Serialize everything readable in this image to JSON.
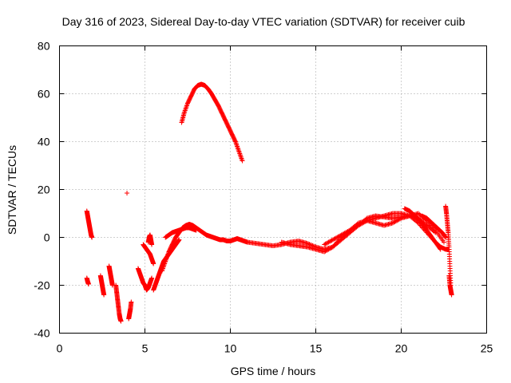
{
  "chart_data": {
    "type": "scatter",
    "title": "Day 316 of 2023, Sidereal Day-to-day VTEC variation (SDTVAR) for receiver cuib",
    "xlabel": "GPS time / hours",
    "ylabel": "SDTVAR / TECUs",
    "xlim": [
      0,
      25
    ],
    "ylim": [
      -40,
      80
    ],
    "xticks": [
      0,
      5,
      10,
      15,
      20,
      25
    ],
    "yticks": [
      -40,
      -20,
      0,
      20,
      40,
      60,
      80
    ],
    "grid": true,
    "marker": "+",
    "color": "#ff0000",
    "series": [
      {
        "name": "arc1",
        "x": [
          1.6,
          1.65,
          1.7,
          1.75,
          1.8,
          1.85,
          1.9
        ],
        "y": [
          11,
          9,
          7,
          5,
          3,
          1,
          0
        ]
      },
      {
        "name": "arc2",
        "x": [
          1.6,
          1.65,
          1.7
        ],
        "y": [
          -17,
          -18.5,
          -19.5
        ]
      },
      {
        "name": "arc3",
        "x": [
          2.4,
          2.45,
          2.5,
          2.55,
          2.6
        ],
        "y": [
          -16,
          -18,
          -20,
          -22,
          -24
        ]
      },
      {
        "name": "arc4",
        "x": [
          2.9,
          2.95,
          3.0,
          3.05,
          3.1
        ],
        "y": [
          -12,
          -14,
          -16,
          -18,
          -20
        ]
      },
      {
        "name": "arc5",
        "x": [
          3.3,
          3.35,
          3.4,
          3.45,
          3.5,
          3.55,
          3.6
        ],
        "y": [
          -20,
          -23,
          -26,
          -29,
          -32,
          -34,
          -35
        ]
      },
      {
        "name": "arc6",
        "x": [
          3.95
        ],
        "y": [
          18.5
        ]
      },
      {
        "name": "arc7",
        "x": [
          4.05,
          4.1,
          4.15,
          4.2
        ],
        "y": [
          -34,
          -32,
          -30,
          -27
        ]
      },
      {
        "name": "arc8",
        "x": [
          4.6,
          4.7,
          4.8,
          4.9,
          5.0,
          5.1,
          5.2,
          5.3,
          5.4
        ],
        "y": [
          -13,
          -15,
          -17,
          -19,
          -20,
          -22,
          -21,
          -19,
          -17
        ]
      },
      {
        "name": "arc9",
        "x": [
          4.9,
          5.0,
          5.1,
          5.2,
          5.3,
          5.4,
          5.5
        ],
        "y": [
          -3,
          -4,
          -5,
          -6,
          -7,
          -9,
          -11
        ]
      },
      {
        "name": "arc10",
        "x": [
          5.2,
          5.25,
          5.3,
          5.35,
          5.4
        ],
        "y": [
          -2,
          0,
          1,
          -1,
          -3
        ]
      },
      {
        "name": "arc11",
        "x": [
          5.5,
          5.6,
          5.7,
          5.8,
          5.9,
          6.0,
          6.1,
          6.2,
          6.3,
          6.4,
          6.5,
          6.6,
          6.7,
          6.8,
          6.9,
          7.0
        ],
        "y": [
          -22,
          -20,
          -18,
          -16,
          -14,
          -12,
          -10,
          -9,
          -8,
          -7,
          -6,
          -5,
          -4,
          -3,
          -2,
          -1
        ]
      },
      {
        "name": "arc12",
        "x": [
          6.0,
          6.2,
          6.4,
          6.6,
          6.8,
          7.0,
          7.2,
          7.4,
          7.6,
          7.8,
          8.0,
          8.2,
          8.4,
          8.6,
          8.8,
          9.0,
          9.2,
          9.4,
          9.6,
          9.8,
          10.0,
          10.2,
          10.4,
          10.6,
          10.8,
          11.0
        ],
        "y": [
          -14,
          -10,
          -6,
          -3,
          0,
          2,
          4,
          5,
          5.5,
          5,
          4,
          3,
          2,
          1,
          0.5,
          0,
          -0.5,
          -1,
          -1,
          -1.5,
          -1.5,
          -1,
          -0.5,
          -1,
          -1.5,
          -2
        ]
      },
      {
        "name": "arc13",
        "x": [
          6.2,
          6.4,
          6.6,
          6.8,
          7.0,
          7.2,
          7.4,
          7.6,
          7.8,
          8.0
        ],
        "y": [
          0,
          1,
          2,
          2.5,
          3,
          3.5,
          4,
          4,
          3.5,
          3
        ]
      },
      {
        "name": "arc14",
        "x": [
          7.15,
          7.3,
          7.5,
          7.7,
          7.9,
          8.1,
          8.3,
          8.5,
          8.7,
          8.9,
          9.1,
          9.3,
          9.5,
          9.7,
          9.9,
          10.1,
          10.3,
          10.5,
          10.7
        ],
        "y": [
          48,
          52,
          56,
          59,
          62,
          63.5,
          64,
          63.5,
          62,
          60,
          57.5,
          55,
          52,
          49,
          46,
          43,
          40,
          36,
          32
        ]
      },
      {
        "name": "arc15",
        "x": [
          11.0,
          11.5,
          12.0,
          12.5,
          13.0,
          13.5,
          14.0,
          14.5,
          15.0,
          15.5,
          16.0,
          16.5,
          17.0,
          17.5,
          18.0,
          18.5,
          19.0,
          19.5,
          20.0,
          20.5,
          21.0,
          21.5,
          22.0
        ],
        "y": [
          -2,
          -2.5,
          -3,
          -3.5,
          -3,
          -2,
          -1.5,
          -2.5,
          -4,
          -5,
          -4,
          -1,
          2,
          5,
          8,
          9,
          8.5,
          8,
          8.5,
          9,
          8,
          5,
          2
        ]
      },
      {
        "name": "arc16",
        "x": [
          13.0,
          13.5,
          14.0,
          14.5,
          15.0,
          15.5,
          16.0,
          16.5,
          17.0,
          17.5,
          18.0,
          18.5,
          19.0,
          19.5,
          20.0,
          20.5,
          21.0,
          21.5,
          22.0,
          22.5
        ],
        "y": [
          -2,
          -3,
          -3.5,
          -4,
          -5,
          -6,
          -4,
          0,
          3,
          6,
          7,
          6,
          5,
          6,
          8,
          9,
          10,
          7,
          3,
          -2
        ]
      },
      {
        "name": "arc17",
        "x": [
          15.5,
          16.0,
          16.5,
          17.0,
          17.5,
          18.0,
          18.5,
          19.0,
          19.5,
          20.0,
          20.5,
          21.0,
          21.5,
          22.0,
          22.3
        ],
        "y": [
          -3,
          -1,
          1,
          3,
          5,
          7,
          8,
          9,
          10,
          10,
          9,
          6,
          2,
          -2,
          -5
        ]
      },
      {
        "name": "arc18",
        "x": [
          20.2,
          20.5,
          20.8,
          21.1,
          21.4,
          21.7,
          22.0,
          22.3,
          22.6,
          22.8
        ],
        "y": [
          12,
          11,
          9,
          7,
          4,
          1,
          -2,
          -4,
          -5,
          -5
        ]
      },
      {
        "name": "arc19",
        "x": [
          21.2,
          21.5,
          21.8,
          22.1,
          22.4,
          22.6
        ],
        "y": [
          9,
          8,
          6,
          4,
          2,
          0
        ]
      },
      {
        "name": "arc20",
        "x": [
          22.6,
          22.65,
          22.7,
          22.75,
          22.8,
          22.85,
          22.9
        ],
        "y": [
          13,
          10,
          6,
          2,
          -4,
          -12,
          -20
        ]
      },
      {
        "name": "arc21",
        "x": [
          22.8,
          22.85,
          22.9,
          22.95
        ],
        "y": [
          -16,
          -20,
          -22,
          -24
        ]
      }
    ]
  }
}
